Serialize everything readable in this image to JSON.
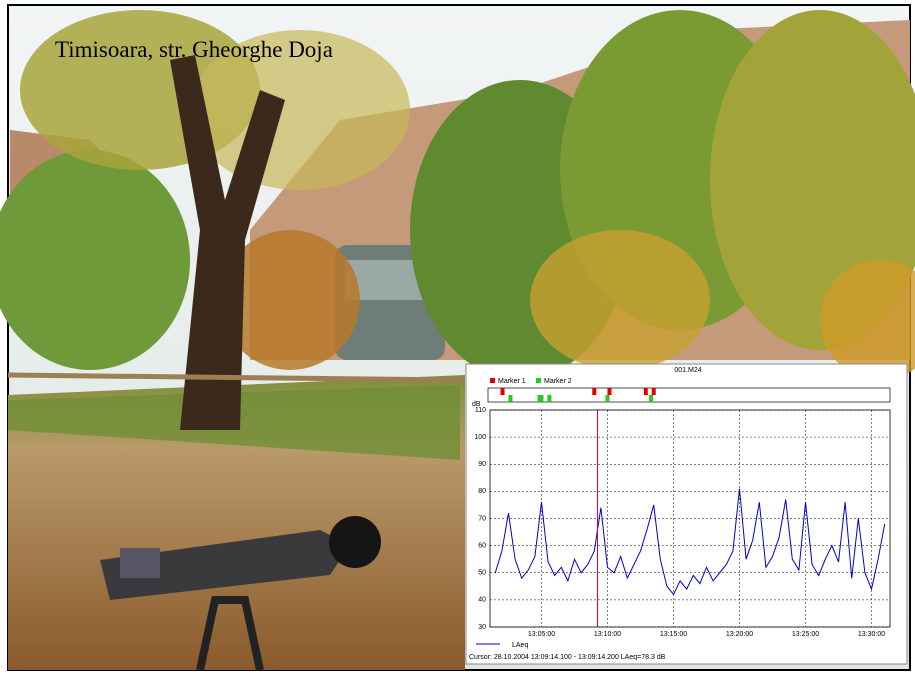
{
  "caption": "Timisoara, str. Gheorghe Doja",
  "chart_data": {
    "type": "line",
    "title": "001.M24",
    "y_label": "dB",
    "ylim": [
      30,
      110
    ],
    "yticks": [
      30,
      40,
      50,
      60,
      70,
      80,
      90,
      100,
      110
    ],
    "xlim": [
      1.1,
      31.4
    ],
    "xticks": [
      {
        "value": 5,
        "label": "13:05:00"
      },
      {
        "value": 10,
        "label": "13:10:00"
      },
      {
        "value": 15,
        "label": "13:15:00"
      },
      {
        "value": 20,
        "label": "13:20:00"
      },
      {
        "value": 25,
        "label": "13:25:00"
      },
      {
        "value": 30,
        "label": "13:30:00"
      }
    ],
    "grid": true,
    "x": [
      1.5,
      2,
      2.5,
      3,
      3.5,
      4,
      4.5,
      5,
      5.5,
      6,
      6.5,
      7,
      7.5,
      8,
      8.5,
      9,
      9.5,
      10,
      10.5,
      11,
      11.5,
      12,
      12.5,
      13,
      13.5,
      14,
      14.5,
      15,
      15.5,
      16,
      16.5,
      17,
      17.5,
      18,
      18.5,
      19,
      19.5,
      20,
      20.5,
      21,
      21.5,
      22,
      22.5,
      23,
      23.5,
      24,
      24.5,
      25,
      25.5,
      26,
      26.5,
      27,
      27.5,
      28,
      28.5,
      29,
      29.5,
      30,
      30.5,
      31
    ],
    "series": [
      {
        "name": "LAeq",
        "color": "#0000cc",
        "values": [
          50,
          58,
          72,
          55,
          48,
          51,
          56,
          76,
          54,
          49,
          52,
          47,
          55,
          50,
          53,
          58,
          74,
          52,
          50,
          56,
          48,
          53,
          58,
          66,
          75,
          55,
          45,
          42,
          47,
          44,
          49,
          46,
          52,
          47,
          50,
          53,
          58,
          81,
          55,
          62,
          76,
          52,
          56,
          63,
          77,
          55,
          51,
          76,
          53,
          49,
          55,
          60,
          54,
          76,
          48,
          70,
          50,
          44,
          55,
          68
        ]
      }
    ],
    "markers": [
      {
        "name": "Marker 1",
        "color": "#e00000",
        "x": [
          2.05,
          9.0,
          10.15,
          12.9,
          13.5
        ]
      },
      {
        "name": "Marker 2",
        "color": "#22cc22",
        "x": [
          2.65,
          4.85,
          5.0,
          5.6,
          10.0,
          13.3
        ]
      }
    ],
    "cursor": {
      "x": 9.24,
      "color": "#c00040",
      "label": "Cursor: 28.10.2004 13:09:14.100 - 13:09:14.200  LAeq=78.3 dB"
    }
  }
}
